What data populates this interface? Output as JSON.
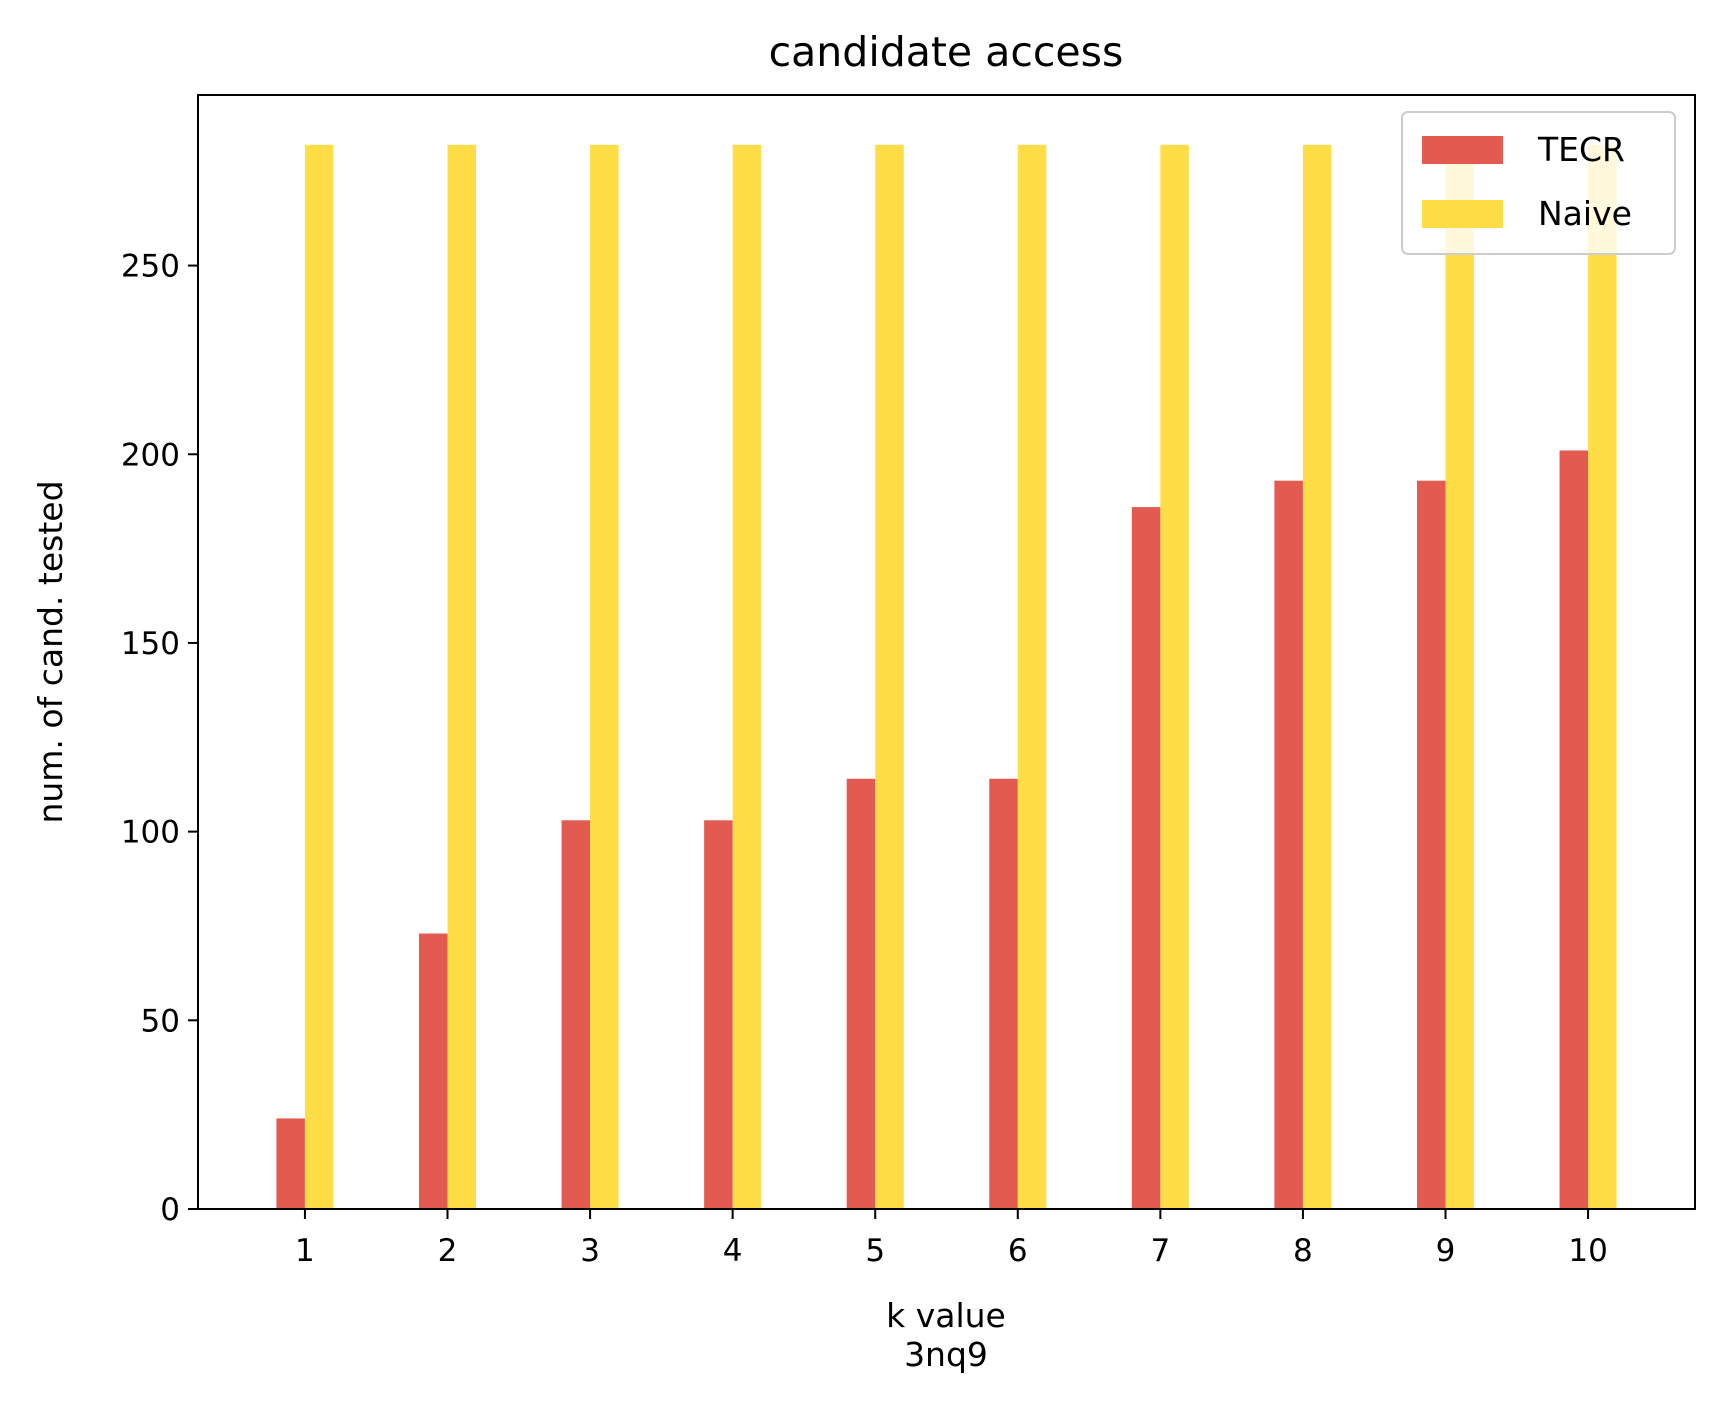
{
  "chart_data": {
    "type": "bar",
    "title": "candidate access",
    "xlabel": "k value",
    "xlabel_sub": "3nq9",
    "ylabel": "num. of cand. tested",
    "categories": [
      "1",
      "2",
      "3",
      "4",
      "5",
      "6",
      "7",
      "8",
      "9",
      "10"
    ],
    "series": [
      {
        "name": "TECR",
        "color": "#e35a50",
        "values": [
          24,
          73,
          103,
          103,
          114,
          114,
          186,
          193,
          193,
          201
        ]
      },
      {
        "name": "Naive",
        "color": "#ffdd47",
        "values": [
          282,
          282,
          282,
          282,
          282,
          282,
          282,
          282,
          282,
          282
        ]
      }
    ],
    "ylim": [
      0,
      295.2
    ],
    "yticks": [
      0,
      50,
      100,
      150,
      200,
      250
    ],
    "grid": false,
    "legend": "top-right"
  }
}
